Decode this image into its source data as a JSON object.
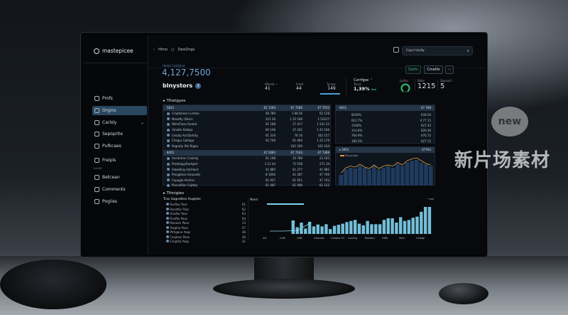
{
  "brand": {
    "name": "mastepicee"
  },
  "breadcrumb": {
    "back": "Himo",
    "current": "DesiOngs"
  },
  "search": {
    "value": "Cqorl Uoilly"
  },
  "sidebar": {
    "items": [
      {
        "label": "Profs",
        "icon": "user-icon"
      },
      {
        "label": "Orgins",
        "icon": "chart-icon",
        "active": true
      },
      {
        "label": "Carlsly",
        "icon": "calendar-icon",
        "chevron": true
      },
      {
        "label": "Sepoprite",
        "icon": "grid-icon"
      },
      {
        "label": "Pufkcaes",
        "icon": "link-icon"
      },
      {
        "label": "Freipls",
        "icon": "tag-icon"
      }
    ],
    "section_label": "SAENO",
    "items2": [
      {
        "label": "Betcean",
        "icon": "box-icon"
      },
      {
        "label": "Comments",
        "icon": "comment-icon"
      },
      {
        "label": "Pogiies",
        "icon": "pages-icon"
      }
    ]
  },
  "summary": {
    "label": "Halad Cestlaine",
    "value": "4,127,7500",
    "title": "blnystors",
    "info": "i"
  },
  "kpis": [
    {
      "label": "Wlerds ~",
      "value": "41"
    },
    {
      "label": "Fredt",
      "value": "44"
    },
    {
      "label": "Tymps",
      "value": "149"
    }
  ],
  "trend": {
    "title": "Corrfgse",
    "sub": "Tenct",
    "value": "1,39%",
    "unit": "Ave"
  },
  "gauge": {
    "label": "Lpirtu",
    "level": 0.75,
    "color": "#2fbf71"
  },
  "stats": [
    {
      "label": "Baby",
      "value": "1215"
    },
    {
      "label": "Sopnact",
      "value": "5"
    }
  ],
  "buttons": {
    "primary": "Dartn",
    "secondary": "Cmelils",
    "more": "···"
  },
  "section1": {
    "title": "Tlhetgyes"
  },
  "table1": {
    "groups": [
      {
        "header": [
          "5811",
          "61 7293",
          "67 7180",
          "67 7553"
        ],
        "rows": [
          [
            "Cropfamea Curstan",
            "66 789",
            "1 88 56",
            "62 128"
          ],
          [
            "Mosafty /Slissn",
            "221 56",
            "1 35 506",
            "1 52227"
          ],
          [
            "Wire/Flaso Fandre",
            "61 198",
            "27 417",
            "1 221 25"
          ],
          [
            "Umatle Radipa",
            "60 1A6",
            "37 241",
            "1 43 166"
          ],
          [
            "Cesaty Asl Darkity",
            "61 316",
            "76 16",
            "162 157"
          ],
          [
            "Chegry Gatiaga",
            "62 709",
            "61 464",
            "1 22 179"
          ],
          [
            "Pogrally /fisl Rigeo",
            "",
            "241 160",
            "162 164"
          ]
        ]
      },
      {
        "header": [
          "8451",
          "67 2063",
          "67 7163",
          "67 7369"
        ],
        "rows": [
          [
            "Anclertmn Crainity",
            "61 198",
            "25 789",
            "23 165"
          ],
          [
            "Protology/Sartgert",
            "2 12 44",
            "72 558",
            "571 39"
          ],
          [
            "Febel/liay Intrident",
            "41 885",
            "61 277",
            "41 985"
          ],
          [
            "Presgtiese Geanatts",
            "8 1656",
            "41 287",
            "47 706"
          ],
          [
            "Cepagle Ahsitra",
            "61 457",
            "61 951",
            "47 703"
          ],
          [
            "Piarcaflion Cajtaty",
            "61 487",
            "61 089",
            "61 122"
          ]
        ]
      }
    ]
  },
  "table2": {
    "header": [
      "0011",
      "67 768"
    ],
    "rows": [
      [
        "8160%",
        "639.20"
      ],
      [
        "612.7%",
        "4.77 15"
      ],
      [
        "1160%",
        "627.35"
      ],
      [
        "114.6%",
        "626.36"
      ],
      [
        "764.9%",
        "676.72"
      ],
      [
        "185.3%",
        "627 15"
      ]
    ]
  },
  "area_panel": {
    "header": "5951",
    "legend": "Ploud bael",
    "value": "67763",
    "bars": [
      30,
      45,
      50,
      48,
      55,
      50,
      45,
      55,
      45,
      50,
      55,
      50,
      60,
      55,
      65,
      70,
      72,
      65,
      60,
      55
    ],
    "line": [
      35,
      50,
      55,
      52,
      60,
      52,
      48,
      58,
      48,
      55,
      58,
      55,
      65,
      58,
      70,
      75,
      78,
      70,
      62,
      58
    ],
    "bar_color": "#1f3a5c",
    "line_color": "#e0a040"
  },
  "section2": {
    "title": "Tlhnigies"
  },
  "list": {
    "title": "Trav Sagnalton Hugsles",
    "items": [
      [
        "Rusfisy Yoso",
        "61"
      ],
      [
        "Rsonftar Psos",
        "62"
      ],
      [
        "Gosdte Yaoo",
        "63"
      ],
      [
        "Fiasfity Pasa",
        "64"
      ],
      [
        "Rasaom Pooo",
        "13"
      ],
      [
        "Yosplea Poos",
        "27"
      ],
      [
        "Ptrhgane Yoop",
        "46"
      ],
      [
        "Cosptios Pooo",
        "36"
      ],
      [
        "Cesptlia Yoop",
        "31"
      ]
    ]
  },
  "bar_chart": {
    "title": "Mand",
    "legend": "• aaa",
    "x_labels": [
      "Infl",
      "HuRi",
      "LMB",
      "Guardse",
      "Contect 51",
      "Cocling",
      "Reafacs",
      "Diffe",
      "Viter",
      "Cedagi"
    ],
    "values": [
      50,
      25,
      42,
      20,
      45,
      28,
      35,
      28,
      36,
      18,
      30,
      34,
      38,
      44,
      48,
      52,
      38,
      32,
      48,
      36,
      36,
      36,
      52,
      58,
      58,
      42,
      62,
      48,
      52,
      60,
      64,
      82,
      100,
      100
    ],
    "color": "#7fd3ee"
  },
  "watermark": {
    "text": "新片场素材",
    "logo": "new"
  }
}
